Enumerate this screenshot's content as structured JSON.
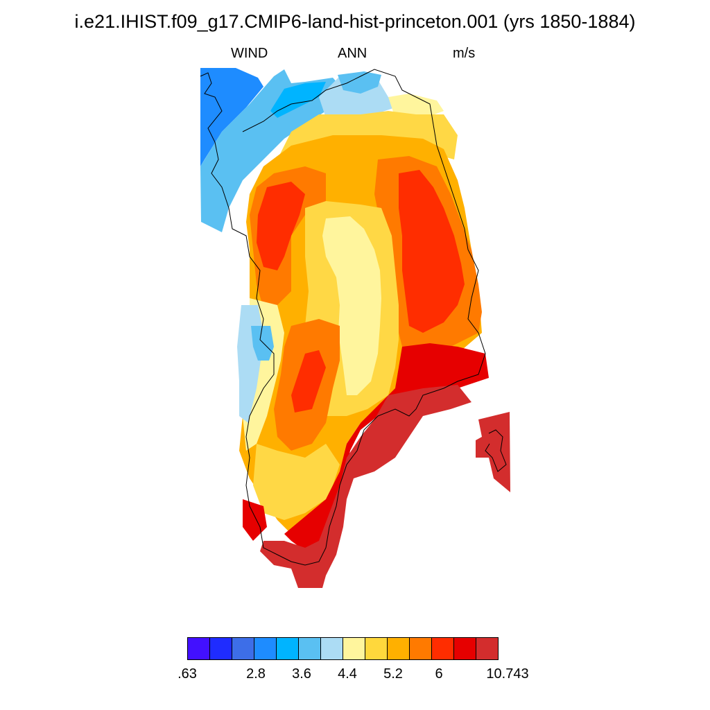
{
  "title": "i.e21.IHIST.f09_g17.CMIP6-land-hist-princeton.001 (yrs 1850-1884)",
  "subtitle": {
    "variable": "WIND",
    "period": "ANN",
    "units": "m/s"
  },
  "map": {
    "region": "Greenland",
    "projection": "polar stereographic",
    "coastline": true,
    "regions": [
      {
        "level": "light-blue",
        "color": "#9fd4ee"
      },
      {
        "level": "pale-yellow",
        "color": "#fff59d"
      },
      {
        "level": "yellow",
        "color": "#ffd845"
      },
      {
        "level": "orange-yellow",
        "color": "#ffb000"
      },
      {
        "level": "orange",
        "color": "#ff7a00"
      },
      {
        "level": "red-orange",
        "color": "#ff2d00"
      },
      {
        "level": "red",
        "color": "#e60000"
      },
      {
        "level": "dark-red",
        "color": "#d32d2d"
      }
    ]
  },
  "colorbar": {
    "colors": [
      "#4210ff",
      "#1f2cff",
      "#3d6ee8",
      "#1e8cff",
      "#00b4ff",
      "#5ac0f2",
      "#acdcf4",
      "#fff59d",
      "#ffd83c",
      "#ffb000",
      "#ff7a00",
      "#ff2d00",
      "#e60000",
      "#d32d2d"
    ],
    "labels": [
      {
        "text": ".63",
        "boundary": 0
      },
      {
        "text": "2.8",
        "boundary": 3
      },
      {
        "text": "3.6",
        "boundary": 5
      },
      {
        "text": "4.4",
        "boundary": 7
      },
      {
        "text": "5.2",
        "boundary": 9
      },
      {
        "text": "6",
        "boundary": 11
      },
      {
        "text": "10.743",
        "boundary": 14
      }
    ]
  }
}
